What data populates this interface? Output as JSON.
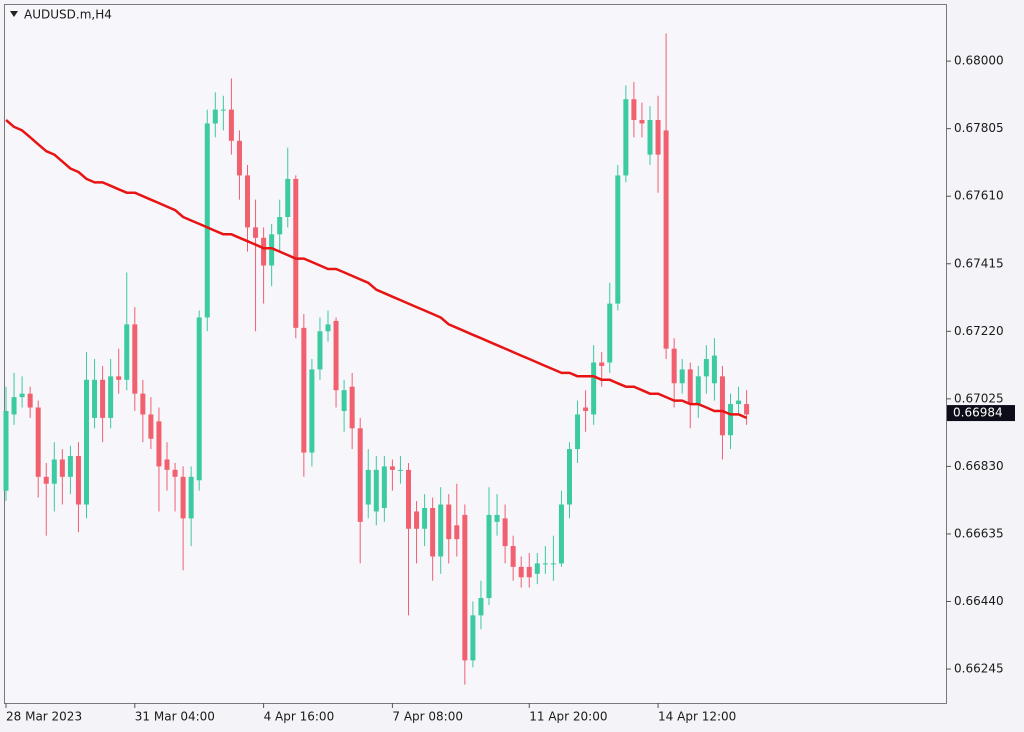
{
  "chart_data": {
    "type": "candlestick",
    "title": "AUDUSD.m,H4",
    "up_color": "#3ccaa0",
    "down_color": "#f0606e",
    "ylim": [
      0.66147,
      0.68162
    ],
    "yticks": [
      {
        "value": 0.66245,
        "label": "0.66245"
      },
      {
        "value": 0.6644,
        "label": "0.66440"
      },
      {
        "value": 0.66635,
        "label": "0.66635"
      },
      {
        "value": 0.6683,
        "label": "0.66830"
      },
      {
        "value": 0.67025,
        "label": "0.67025"
      },
      {
        "value": 0.6722,
        "label": "0.67220"
      },
      {
        "value": 0.67415,
        "label": "0.67415"
      },
      {
        "value": 0.6761,
        "label": "0.67610"
      },
      {
        "value": 0.67805,
        "label": "0.67805"
      },
      {
        "value": 0.68,
        "label": "0.68000"
      }
    ],
    "xticks": [
      {
        "value": 0,
        "label": "28 Mar 2023"
      },
      {
        "value": 16,
        "label": "31 Mar 04:00"
      },
      {
        "value": 32,
        "label": "4 Apr 16:00"
      },
      {
        "value": 48,
        "label": "7 Apr 08:00"
      },
      {
        "value": 65,
        "label": "11 Apr 20:00"
      },
      {
        "value": 81,
        "label": "14 Apr 12:00"
      }
    ],
    "last_price": {
      "value": 0.66984,
      "label": "0.66984",
      "color": "#0d0d1a"
    },
    "ohlc": [
      [
        0.6676,
        0.6706,
        0.6673,
        0.6699
      ],
      [
        0.6698,
        0.671,
        0.6695,
        0.6703
      ],
      [
        0.6703,
        0.6709,
        0.67,
        0.6704
      ],
      [
        0.6704,
        0.6706,
        0.6697,
        0.67
      ],
      [
        0.67,
        0.6702,
        0.6674,
        0.668
      ],
      [
        0.668,
        0.6684,
        0.6663,
        0.6678
      ],
      [
        0.6678,
        0.669,
        0.667,
        0.6685
      ],
      [
        0.6685,
        0.6688,
        0.6672,
        0.668
      ],
      [
        0.668,
        0.6689,
        0.6675,
        0.6686
      ],
      [
        0.6686,
        0.669,
        0.6664,
        0.6672
      ],
      [
        0.6672,
        0.6716,
        0.6668,
        0.6708
      ],
      [
        0.6697,
        0.6714,
        0.6694,
        0.6708
      ],
      [
        0.6708,
        0.6712,
        0.669,
        0.6697
      ],
      [
        0.6697,
        0.6714,
        0.6694,
        0.6709
      ],
      [
        0.6709,
        0.6717,
        0.6704,
        0.6708
      ],
      [
        0.6708,
        0.6739,
        0.6705,
        0.6724
      ],
      [
        0.6724,
        0.6729,
        0.6699,
        0.6704
      ],
      [
        0.6704,
        0.6708,
        0.669,
        0.6698
      ],
      [
        0.6698,
        0.6703,
        0.6688,
        0.6691
      ],
      [
        0.6696,
        0.67,
        0.667,
        0.6683
      ],
      [
        0.6685,
        0.669,
        0.6676,
        0.6682
      ],
      [
        0.6682,
        0.6684,
        0.667,
        0.668
      ],
      [
        0.668,
        0.6683,
        0.6653,
        0.6668
      ],
      [
        0.6668,
        0.6683,
        0.666,
        0.668
      ],
      [
        0.6679,
        0.6728,
        0.6676,
        0.6726
      ],
      [
        0.6726,
        0.6786,
        0.6722,
        0.6782
      ],
      [
        0.6782,
        0.6791,
        0.6778,
        0.6786
      ],
      [
        0.6786,
        0.679,
        0.678,
        0.6786
      ],
      [
        0.6786,
        0.6795,
        0.6773,
        0.6777
      ],
      [
        0.6777,
        0.678,
        0.676,
        0.6767
      ],
      [
        0.6767,
        0.677,
        0.6745,
        0.6752
      ],
      [
        0.6752,
        0.676,
        0.6722,
        0.6749
      ],
      [
        0.6749,
        0.6752,
        0.673,
        0.6741
      ],
      [
        0.6741,
        0.6753,
        0.6735,
        0.675
      ],
      [
        0.675,
        0.676,
        0.6745,
        0.6755
      ],
      [
        0.6755,
        0.6775,
        0.6752,
        0.6766
      ],
      [
        0.6766,
        0.6767,
        0.672,
        0.6723
      ],
      [
        0.6723,
        0.6727,
        0.668,
        0.6687
      ],
      [
        0.6687,
        0.6714,
        0.6683,
        0.6711
      ],
      [
        0.6711,
        0.6726,
        0.6708,
        0.6722
      ],
      [
        0.6722,
        0.6728,
        0.6719,
        0.6724
      ],
      [
        0.6725,
        0.6726,
        0.67,
        0.6705
      ],
      [
        0.6699,
        0.6708,
        0.6693,
        0.6705
      ],
      [
        0.6706,
        0.671,
        0.6688,
        0.6694
      ],
      [
        0.6694,
        0.6697,
        0.6655,
        0.6667
      ],
      [
        0.6672,
        0.6688,
        0.6668,
        0.6682
      ],
      [
        0.667,
        0.6686,
        0.6666,
        0.6682
      ],
      [
        0.6671,
        0.6686,
        0.6667,
        0.6683
      ],
      [
        0.6683,
        0.6685,
        0.6676,
        0.6682
      ],
      [
        0.6682,
        0.6686,
        0.6678,
        0.6682
      ],
      [
        0.6682,
        0.6684,
        0.664,
        0.6665
      ],
      [
        0.667,
        0.6673,
        0.6655,
        0.6665
      ],
      [
        0.6665,
        0.6675,
        0.666,
        0.6671
      ],
      [
        0.6671,
        0.6674,
        0.665,
        0.6657
      ],
      [
        0.6657,
        0.6677,
        0.6652,
        0.6672
      ],
      [
        0.6672,
        0.6675,
        0.6655,
        0.6662
      ],
      [
        0.6666,
        0.6678,
        0.6657,
        0.6662
      ],
      [
        0.6669,
        0.6672,
        0.662,
        0.6627
      ],
      [
        0.6627,
        0.6644,
        0.6625,
        0.664
      ],
      [
        0.664,
        0.665,
        0.6636,
        0.6645
      ],
      [
        0.6645,
        0.6677,
        0.6643,
        0.6669
      ],
      [
        0.6667,
        0.6675,
        0.6663,
        0.6669
      ],
      [
        0.6668,
        0.6672,
        0.6655,
        0.666
      ],
      [
        0.666,
        0.6663,
        0.665,
        0.6654
      ],
      [
        0.6654,
        0.6657,
        0.6648,
        0.6651
      ],
      [
        0.6654,
        0.6658,
        0.6648,
        0.6651
      ],
      [
        0.6652,
        0.6658,
        0.6649,
        0.6655
      ],
      [
        0.6655,
        0.666,
        0.6652,
        0.6655
      ],
      [
        0.6655,
        0.6663,
        0.665,
        0.6655
      ],
      [
        0.6655,
        0.6676,
        0.6654,
        0.6672
      ],
      [
        0.6672,
        0.669,
        0.6668,
        0.6688
      ],
      [
        0.6688,
        0.6702,
        0.6684,
        0.6698
      ],
      [
        0.67,
        0.6705,
        0.6693,
        0.6699
      ],
      [
        0.6698,
        0.6718,
        0.6695,
        0.6713
      ],
      [
        0.6713,
        0.6716,
        0.6706,
        0.6712
      ],
      [
        0.6713,
        0.6736,
        0.671,
        0.673
      ],
      [
        0.673,
        0.677,
        0.6728,
        0.6767
      ],
      [
        0.6767,
        0.6793,
        0.6765,
        0.6789
      ],
      [
        0.6789,
        0.6794,
        0.6778,
        0.6783
      ],
      [
        0.6783,
        0.6788,
        0.6778,
        0.6782
      ],
      [
        0.6773,
        0.6787,
        0.677,
        0.6783
      ],
      [
        0.6783,
        0.679,
        0.6762,
        0.6773
      ],
      [
        0.678,
        0.6808,
        0.6714,
        0.6717
      ],
      [
        0.6717,
        0.672,
        0.67,
        0.6707
      ],
      [
        0.6707,
        0.6714,
        0.6704,
        0.6711
      ],
      [
        0.6711,
        0.6713,
        0.6694,
        0.6701
      ],
      [
        0.6701,
        0.6712,
        0.6697,
        0.6709
      ],
      [
        0.6709,
        0.6718,
        0.6704,
        0.6714
      ],
      [
        0.6707,
        0.672,
        0.6702,
        0.6715
      ],
      [
        0.6709,
        0.6712,
        0.6685,
        0.6692
      ],
      [
        0.6692,
        0.6704,
        0.6688,
        0.6701
      ],
      [
        0.6701,
        0.6706,
        0.6698,
        0.6702
      ],
      [
        0.6701,
        0.6705,
        0.6695,
        0.6698
      ]
    ],
    "series": [
      {
        "color": "#e81414",
        "values": [
          0.6783,
          0.6781,
          0.678,
          0.6778,
          0.6776,
          0.6774,
          0.6773,
          0.6771,
          0.6769,
          0.6768,
          0.6766,
          0.6765,
          0.6765,
          0.6764,
          0.6763,
          0.6762,
          0.6762,
          0.6761,
          0.676,
          0.6759,
          0.6758,
          0.6757,
          0.6755,
          0.6754,
          0.6753,
          0.6752,
          0.6751,
          0.675,
          0.675,
          0.6749,
          0.6748,
          0.6747,
          0.6746,
          0.6746,
          0.6745,
          0.6744,
          0.6743,
          0.6743,
          0.6742,
          0.6741,
          0.674,
          0.674,
          0.6739,
          0.6738,
          0.6737,
          0.6736,
          0.6734,
          0.6733,
          0.6732,
          0.6731,
          0.673,
          0.6729,
          0.6728,
          0.6727,
          0.6726,
          0.6724,
          0.6723,
          0.6722,
          0.6721,
          0.672,
          0.6719,
          0.6718,
          0.6717,
          0.6716,
          0.6715,
          0.6714,
          0.6713,
          0.6712,
          0.6711,
          0.671,
          0.671,
          0.6709,
          0.6709,
          0.6709,
          0.6708,
          0.6708,
          0.6707,
          0.6706,
          0.6706,
          0.6705,
          0.6704,
          0.6704,
          0.6703,
          0.6702,
          0.6702,
          0.6701,
          0.6701,
          0.67,
          0.6699,
          0.6699,
          0.6698,
          0.6698,
          0.6697
        ]
      }
    ]
  }
}
